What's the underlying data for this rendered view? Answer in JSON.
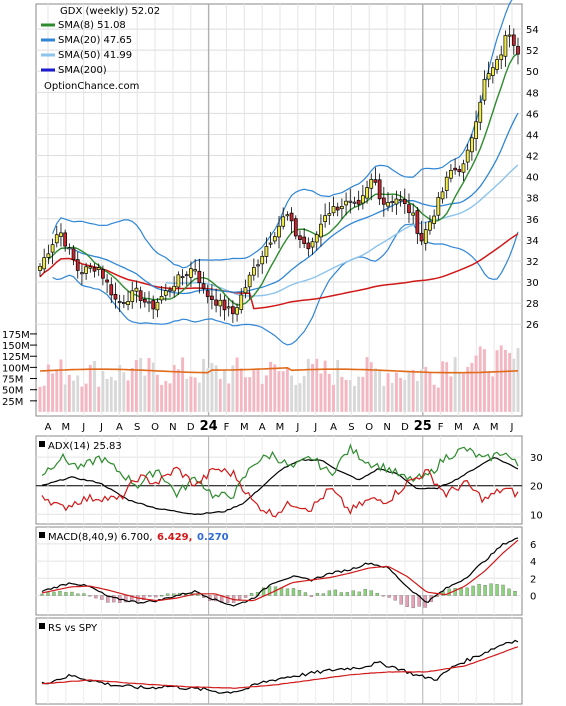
{
  "colors": {
    "up_candle": "#f2ec4a",
    "down_candle": "#c8252e",
    "neutral_candle": "#c9a6d4",
    "sma8": "#2e8b2e",
    "sma20": "#2f86d6",
    "sma50": "#8cc4ec",
    "sma200": "#d01818",
    "bollinger": "#2f86d6",
    "vol_up": "#f4b6c0",
    "vol_down": "#d8d8d8",
    "vol_avg": "#e06a1a",
    "adx": "#000000",
    "plus_di": "#2e8b2e",
    "minus_di": "#d01818",
    "macd": "#000000",
    "signal": "#d01818",
    "hist": "#8bd47a",
    "rs": "#000000",
    "rs_sma": "#d01818"
  },
  "chart_data": [
    {
      "type": "line",
      "panel": "price",
      "legend": [
        {
          "label": "GDX (weekly) 52.02",
          "icon": "none"
        },
        {
          "label": "SMA(8) 51.08",
          "color": "#2e8b2e"
        },
        {
          "label": "SMA(20) 47.65",
          "color": "#2f86d6"
        },
        {
          "label": "SMA(50) 41.99",
          "color": "#8cc4ec"
        },
        {
          "label": "SMA(200)",
          "color": "#1a1ad0"
        }
      ],
      "watermark": "OptionChance.com",
      "x_tick_labels": [
        "A",
        "M",
        "J",
        "J",
        "A",
        "S",
        "O",
        "N",
        "D",
        "24",
        "F",
        "M",
        "A",
        "M",
        "J",
        "J",
        "A",
        "S",
        "O",
        "N",
        "D",
        "25",
        "F",
        "M",
        "A",
        "M",
        "J"
      ],
      "y_ticks": [
        26,
        28,
        30,
        32,
        34,
        36,
        38,
        40,
        42,
        44,
        46,
        48,
        50,
        52,
        54
      ],
      "ylim": [
        24.5,
        56
      ],
      "grid": true,
      "close_anchors": [
        [
          0,
          31.5
        ],
        [
          4,
          35
        ],
        [
          8,
          31
        ],
        [
          12,
          31.5
        ],
        [
          16,
          28
        ],
        [
          20,
          29
        ],
        [
          23,
          27.5
        ],
        [
          28,
          30
        ],
        [
          32,
          31.5
        ],
        [
          34,
          29
        ],
        [
          37,
          28
        ],
        [
          40,
          27
        ],
        [
          44,
          31
        ],
        [
          47,
          33.5
        ],
        [
          51,
          36.5
        ],
        [
          53,
          34.5
        ],
        [
          56,
          33
        ],
        [
          59,
          36.5
        ],
        [
          63,
          37.5
        ],
        [
          66,
          37
        ],
        [
          69,
          40
        ],
        [
          71,
          37.5
        ],
        [
          74,
          38
        ],
        [
          77,
          36.5
        ],
        [
          79,
          34
        ],
        [
          82,
          37
        ],
        [
          85,
          40.5
        ],
        [
          88,
          41
        ],
        [
          90,
          45
        ],
        [
          92,
          49
        ],
        [
          95,
          51
        ],
        [
          97,
          54
        ],
        [
          99,
          52
        ]
      ],
      "volume_axis_labels": [
        "175M",
        "150M",
        "125M",
        "100M",
        "75M",
        "50M",
        "25M"
      ],
      "volume_axis_values": [
        175,
        150,
        125,
        100,
        75,
        50,
        25
      ],
      "volume_ylim": [
        0,
        195
      ],
      "volume_avg_level": 92
    },
    {
      "type": "line",
      "panel": "adx",
      "label": "ADX(14) 25.83",
      "y_ticks": [
        10,
        20,
        30
      ],
      "ylim": [
        8,
        36
      ],
      "reference_line": 20,
      "series": [
        {
          "name": "ADX",
          "anchors": [
            [
              0,
              20
            ],
            [
              6,
              23
            ],
            [
              12,
              21
            ],
            [
              18,
              15
            ],
            [
              24,
              12
            ],
            [
              32,
              10
            ],
            [
              38,
              11
            ],
            [
              42,
              14
            ],
            [
              46,
              20
            ],
            [
              50,
              26
            ],
            [
              54,
              29
            ],
            [
              58,
              29
            ],
            [
              62,
              25
            ],
            [
              66,
              22
            ],
            [
              70,
              26
            ],
            [
              74,
              24
            ],
            [
              78,
              19
            ],
            [
              82,
              19
            ],
            [
              86,
              22
            ],
            [
              90,
              26
            ],
            [
              94,
              30
            ],
            [
              99,
              26
            ]
          ]
        },
        {
          "name": "+DI",
          "anchors": [
            [
              0,
              24
            ],
            [
              4,
              30
            ],
            [
              8,
              26
            ],
            [
              12,
              30
            ],
            [
              16,
              25
            ],
            [
              20,
              20
            ],
            [
              24,
              26
            ],
            [
              28,
              17
            ],
            [
              32,
              23
            ],
            [
              36,
              16
            ],
            [
              40,
              17
            ],
            [
              44,
              28
            ],
            [
              48,
              31
            ],
            [
              52,
              26
            ],
            [
              56,
              30
            ],
            [
              60,
              24
            ],
            [
              64,
              33
            ],
            [
              68,
              28
            ],
            [
              72,
              26
            ],
            [
              76,
              22
            ],
            [
              80,
              23
            ],
            [
              84,
              30
            ],
            [
              88,
              33
            ],
            [
              92,
              29
            ],
            [
              96,
              32
            ],
            [
              99,
              27
            ]
          ]
        },
        {
          "name": "-DI",
          "anchors": [
            [
              0,
              17
            ],
            [
              4,
              12
            ],
            [
              8,
              15
            ],
            [
              12,
              16
            ],
            [
              16,
              15
            ],
            [
              20,
              23
            ],
            [
              24,
              21
            ],
            [
              28,
              26
            ],
            [
              32,
              20
            ],
            [
              36,
              26
            ],
            [
              40,
              24
            ],
            [
              44,
              14
            ],
            [
              48,
              10
            ],
            [
              52,
              14
            ],
            [
              56,
              12
            ],
            [
              60,
              19
            ],
            [
              64,
              11
            ],
            [
              68,
              15
            ],
            [
              72,
              15
            ],
            [
              76,
              21
            ],
            [
              80,
              25
            ],
            [
              84,
              17
            ],
            [
              88,
              21
            ],
            [
              92,
              15
            ],
            [
              96,
              19
            ],
            [
              99,
              17
            ]
          ]
        }
      ]
    },
    {
      "type": "line",
      "panel": "macd",
      "label": "MACD(8,40,9) 6.700,",
      "signal_value": "6.429,",
      "hist_value": "0.270",
      "y_ticks": [
        0,
        2,
        4,
        6
      ],
      "ylim": [
        -1.8,
        7.5
      ],
      "series": [
        {
          "name": "MACD",
          "anchors": [
            [
              0,
              0.5
            ],
            [
              6,
              1.5
            ],
            [
              10,
              1.0
            ],
            [
              14,
              -0.2
            ],
            [
              20,
              -0.8
            ],
            [
              24,
              -0.6
            ],
            [
              28,
              0
            ],
            [
              32,
              0.5
            ],
            [
              36,
              -0.5
            ],
            [
              40,
              -1.2
            ],
            [
              44,
              -0.3
            ],
            [
              48,
              1.5
            ],
            [
              52,
              2.2
            ],
            [
              56,
              1.8
            ],
            [
              60,
              2.6
            ],
            [
              64,
              3.0
            ],
            [
              68,
              3.8
            ],
            [
              72,
              3.2
            ],
            [
              76,
              1.0
            ],
            [
              80,
              -0.8
            ],
            [
              84,
              0.8
            ],
            [
              88,
              2.0
            ],
            [
              92,
              4.0
            ],
            [
              96,
              6.0
            ],
            [
              99,
              6.7
            ]
          ]
        },
        {
          "name": "Signal",
          "anchors": [
            [
              0,
              0.3
            ],
            [
              6,
              1.0
            ],
            [
              10,
              1.1
            ],
            [
              14,
              0.6
            ],
            [
              20,
              -0.3
            ],
            [
              24,
              -0.6
            ],
            [
              28,
              -0.3
            ],
            [
              32,
              0.2
            ],
            [
              36,
              0.2
            ],
            [
              40,
              -0.5
            ],
            [
              44,
              -0.6
            ],
            [
              48,
              0.4
            ],
            [
              52,
              1.5
            ],
            [
              56,
              1.8
            ],
            [
              60,
              2.1
            ],
            [
              64,
              2.6
            ],
            [
              68,
              3.2
            ],
            [
              72,
              3.4
            ],
            [
              76,
              2.2
            ],
            [
              80,
              0.4
            ],
            [
              84,
              0.1
            ],
            [
              88,
              1.1
            ],
            [
              92,
              2.8
            ],
            [
              96,
              5.0
            ],
            [
              99,
              6.43
            ]
          ]
        }
      ]
    },
    {
      "type": "line",
      "panel": "rs",
      "label": "RS vs SPY",
      "ylim": [
        0,
        1
      ],
      "series": [
        {
          "name": "RS",
          "anchors": [
            [
              0,
              0.22
            ],
            [
              6,
              0.33
            ],
            [
              10,
              0.27
            ],
            [
              14,
              0.21
            ],
            [
              18,
              0.18
            ],
            [
              22,
              0.16
            ],
            [
              26,
              0.19
            ],
            [
              30,
              0.16
            ],
            [
              34,
              0.14
            ],
            [
              38,
              0.1
            ],
            [
              42,
              0.14
            ],
            [
              46,
              0.24
            ],
            [
              50,
              0.3
            ],
            [
              54,
              0.34
            ],
            [
              58,
              0.38
            ],
            [
              62,
              0.42
            ],
            [
              66,
              0.44
            ],
            [
              70,
              0.5
            ],
            [
              74,
              0.43
            ],
            [
              78,
              0.33
            ],
            [
              82,
              0.28
            ],
            [
              86,
              0.47
            ],
            [
              90,
              0.58
            ],
            [
              94,
              0.7
            ],
            [
              97,
              0.79
            ],
            [
              99,
              0.8
            ]
          ]
        },
        {
          "name": "RS SMA",
          "anchors": [
            [
              0,
              0.22
            ],
            [
              10,
              0.27
            ],
            [
              20,
              0.22
            ],
            [
              30,
              0.18
            ],
            [
              40,
              0.16
            ],
            [
              48,
              0.2
            ],
            [
              56,
              0.27
            ],
            [
              64,
              0.34
            ],
            [
              72,
              0.38
            ],
            [
              80,
              0.38
            ],
            [
              88,
              0.46
            ],
            [
              94,
              0.6
            ],
            [
              99,
              0.72
            ]
          ]
        }
      ]
    }
  ]
}
